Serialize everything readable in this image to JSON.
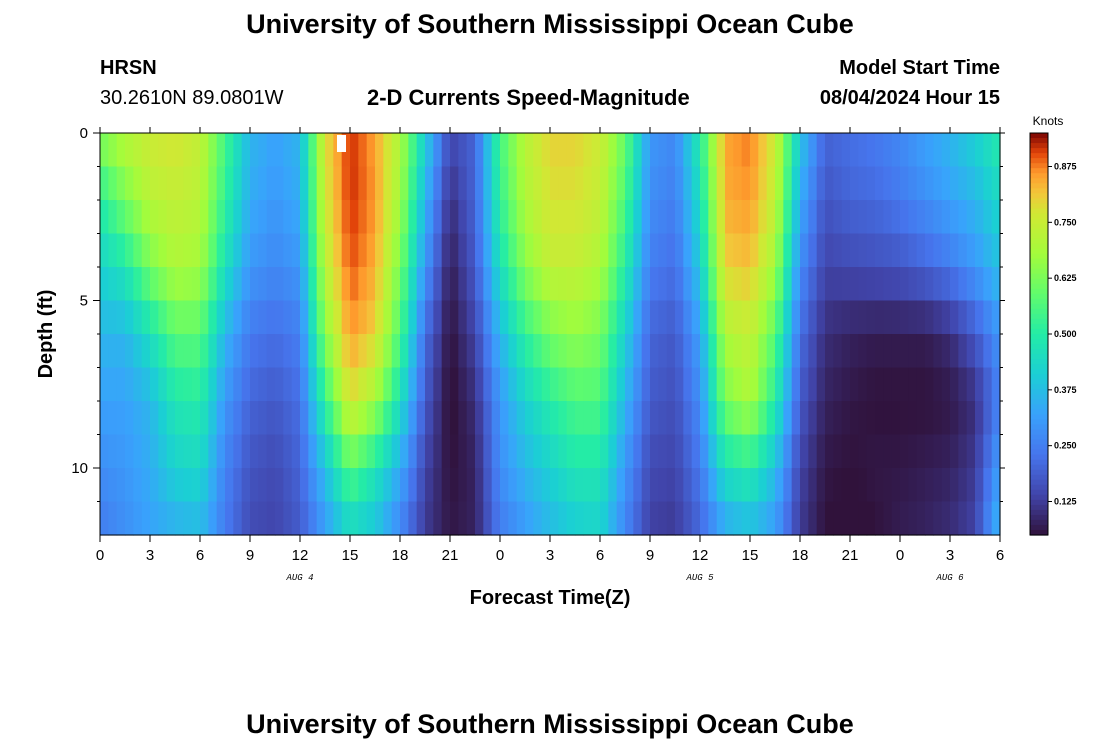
{
  "page": {
    "title_top": "University of Southern Mississippi Ocean Cube",
    "title_bottom": "University of Southern Mississippi Ocean Cube",
    "station": "HRSN",
    "coords": "30.2610N  89.0801W",
    "model_label": "Model Start Time",
    "model_time": "08/04/2024 Hour 15"
  },
  "chart_data": {
    "type": "heatmap",
    "title": "2-D Currents Speed-Magnitude",
    "xlabel": "Forecast Time(Z)",
    "ylabel": "Depth (ft)",
    "x_ticks": [
      "0",
      "3",
      "6",
      "9",
      "12",
      "15",
      "18",
      "21",
      "0",
      "3",
      "6",
      "9",
      "12",
      "15",
      "18",
      "21",
      "0",
      "3",
      "6"
    ],
    "x_range_hours": [
      0,
      54
    ],
    "date_labels": [
      {
        "text": "AUG 4",
        "hour": 12
      },
      {
        "text": "AUG 5",
        "hour": 36
      },
      {
        "text": "AUG 6",
        "hour": 51
      }
    ],
    "y_ticks": [
      "0",
      "5",
      "10"
    ],
    "y_range_ft": [
      0,
      12
    ],
    "colorbar": {
      "unit": "Knots",
      "ticks": [
        "0.125",
        "0.250",
        "0.375",
        "0.500",
        "0.625",
        "0.750",
        "0.875"
      ],
      "tick_values": [
        0.125,
        0.25,
        0.375,
        0.5,
        0.625,
        0.75,
        0.875
      ],
      "range": [
        0.05,
        0.95
      ]
    },
    "speed_knots": {
      "depth_levels_ft": [
        0,
        2,
        4,
        6,
        8,
        10,
        12
      ],
      "hours": [
        0,
        1.5,
        3,
        4.5,
        6,
        7.5,
        9,
        10.5,
        12,
        13.5,
        15,
        16.5,
        18,
        19.5,
        21,
        22.5,
        24,
        25.5,
        27,
        28.5,
        30,
        31.5,
        33,
        34.5,
        36,
        37.5,
        39,
        40.5,
        42,
        43.5,
        45,
        46.5,
        48,
        49.5,
        51,
        52.5,
        54
      ],
      "rows": [
        [
          0.65,
          0.72,
          0.76,
          0.78,
          0.74,
          0.55,
          0.36,
          0.32,
          0.36,
          0.78,
          0.92,
          0.85,
          0.7,
          0.42,
          0.15,
          0.2,
          0.55,
          0.72,
          0.8,
          0.8,
          0.76,
          0.6,
          0.3,
          0.27,
          0.5,
          0.85,
          0.88,
          0.76,
          0.4,
          0.2,
          0.22,
          0.24,
          0.27,
          0.32,
          0.36,
          0.42,
          0.5
        ],
        [
          0.5,
          0.62,
          0.72,
          0.74,
          0.72,
          0.52,
          0.34,
          0.3,
          0.34,
          0.76,
          0.92,
          0.86,
          0.68,
          0.36,
          0.1,
          0.2,
          0.52,
          0.7,
          0.78,
          0.78,
          0.74,
          0.56,
          0.28,
          0.25,
          0.45,
          0.84,
          0.86,
          0.74,
          0.34,
          0.17,
          0.2,
          0.21,
          0.24,
          0.28,
          0.32,
          0.36,
          0.44
        ],
        [
          0.42,
          0.48,
          0.62,
          0.7,
          0.68,
          0.46,
          0.3,
          0.27,
          0.3,
          0.72,
          0.9,
          0.84,
          0.62,
          0.3,
          0.07,
          0.18,
          0.46,
          0.64,
          0.74,
          0.74,
          0.7,
          0.5,
          0.25,
          0.22,
          0.4,
          0.8,
          0.82,
          0.68,
          0.28,
          0.14,
          0.15,
          0.16,
          0.17,
          0.2,
          0.24,
          0.3,
          0.38
        ],
        [
          0.36,
          0.36,
          0.46,
          0.58,
          0.58,
          0.36,
          0.24,
          0.22,
          0.25,
          0.64,
          0.86,
          0.8,
          0.56,
          0.22,
          0.05,
          0.14,
          0.36,
          0.52,
          0.62,
          0.66,
          0.62,
          0.42,
          0.2,
          0.18,
          0.32,
          0.7,
          0.74,
          0.58,
          0.22,
          0.1,
          0.08,
          0.07,
          0.07,
          0.07,
          0.1,
          0.18,
          0.3
        ],
        [
          0.32,
          0.32,
          0.36,
          0.48,
          0.5,
          0.3,
          0.2,
          0.18,
          0.22,
          0.52,
          0.78,
          0.68,
          0.46,
          0.18,
          0.04,
          0.1,
          0.3,
          0.42,
          0.5,
          0.56,
          0.56,
          0.36,
          0.18,
          0.16,
          0.28,
          0.62,
          0.7,
          0.5,
          0.18,
          0.08,
          0.06,
          0.05,
          0.05,
          0.05,
          0.06,
          0.1,
          0.26
        ],
        [
          0.28,
          0.3,
          0.34,
          0.42,
          0.44,
          0.26,
          0.17,
          0.15,
          0.2,
          0.38,
          0.58,
          0.48,
          0.34,
          0.14,
          0.05,
          0.08,
          0.28,
          0.36,
          0.42,
          0.48,
          0.48,
          0.3,
          0.15,
          0.14,
          0.24,
          0.46,
          0.5,
          0.38,
          0.14,
          0.06,
          0.05,
          0.06,
          0.06,
          0.07,
          0.08,
          0.12,
          0.32
        ],
        [
          0.24,
          0.28,
          0.32,
          0.34,
          0.36,
          0.24,
          0.15,
          0.14,
          0.18,
          0.3,
          0.42,
          0.38,
          0.26,
          0.12,
          0.06,
          0.08,
          0.24,
          0.3,
          0.36,
          0.4,
          0.42,
          0.26,
          0.13,
          0.12,
          0.2,
          0.32,
          0.36,
          0.3,
          0.12,
          0.05,
          0.03,
          0.05,
          0.07,
          0.08,
          0.1,
          0.14,
          0.38
        ]
      ]
    }
  }
}
